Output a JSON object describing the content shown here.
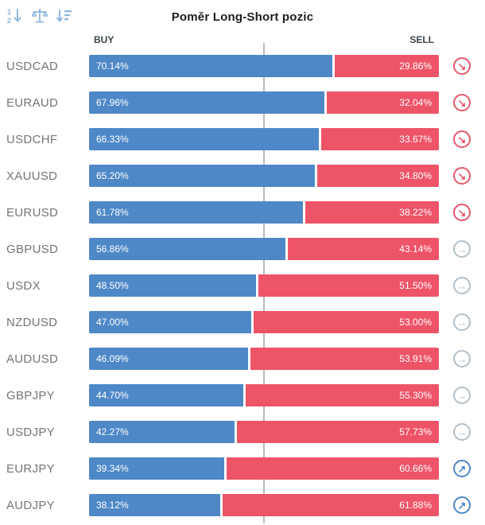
{
  "header": {
    "title": "Poměr Long-Short pozic",
    "buy_label": "BUY",
    "sell_label": "SELL"
  },
  "colors": {
    "buy": "#4e88c7",
    "sell": "#ee5468",
    "trend_down": "#e4596b",
    "trend_flat": "#b3bfc7",
    "trend_up": "#4e88c7",
    "toolbar_icon": "#8fb6dc",
    "center_line": "#b9b9b9"
  },
  "icons": {
    "toolbar": [
      "sort-numeric-icon",
      "balance-icon",
      "sort-amount-icon"
    ],
    "trend_glyphs": {
      "down": "↘",
      "flat": "→",
      "up": "↗"
    }
  },
  "rows": [
    {
      "pair": "USDCAD",
      "buy": "70.14%",
      "sell": "29.86%",
      "buy_value": 70.14,
      "sell_value": 29.86,
      "trend": "down"
    },
    {
      "pair": "EURAUD",
      "buy": "67.96%",
      "sell": "32.04%",
      "buy_value": 67.96,
      "sell_value": 32.04,
      "trend": "down"
    },
    {
      "pair": "USDCHF",
      "buy": "66.33%",
      "sell": "33.67%",
      "buy_value": 66.33,
      "sell_value": 33.67,
      "trend": "down"
    },
    {
      "pair": "XAUUSD",
      "buy": "65.20%",
      "sell": "34.80%",
      "buy_value": 65.2,
      "sell_value": 34.8,
      "trend": "down"
    },
    {
      "pair": "EURUSD",
      "buy": "61.78%",
      "sell": "38.22%",
      "buy_value": 61.78,
      "sell_value": 38.22,
      "trend": "down"
    },
    {
      "pair": "GBPUSD",
      "buy": "56.86%",
      "sell": "43.14%",
      "buy_value": 56.86,
      "sell_value": 43.14,
      "trend": "flat"
    },
    {
      "pair": "USDX",
      "buy": "48.50%",
      "sell": "51.50%",
      "buy_value": 48.5,
      "sell_value": 51.5,
      "trend": "flat"
    },
    {
      "pair": "NZDUSD",
      "buy": "47.00%",
      "sell": "53.00%",
      "buy_value": 47.0,
      "sell_value": 53.0,
      "trend": "flat"
    },
    {
      "pair": "AUDUSD",
      "buy": "46.09%",
      "sell": "53.91%",
      "buy_value": 46.09,
      "sell_value": 53.91,
      "trend": "flat"
    },
    {
      "pair": "GBPJPY",
      "buy": "44.70%",
      "sell": "55.30%",
      "buy_value": 44.7,
      "sell_value": 55.3,
      "trend": "flat"
    },
    {
      "pair": "USDJPY",
      "buy": "42.27%",
      "sell": "57.73%",
      "buy_value": 42.27,
      "sell_value": 57.73,
      "trend": "flat"
    },
    {
      "pair": "EURJPY",
      "buy": "39.34%",
      "sell": "60.66%",
      "buy_value": 39.34,
      "sell_value": 60.66,
      "trend": "up"
    },
    {
      "pair": "AUDJPY",
      "buy": "38.12%",
      "sell": "61.88%",
      "buy_value": 38.12,
      "sell_value": 61.88,
      "trend": "up"
    }
  ],
  "chart_data": {
    "type": "bar",
    "orientation": "horizontal-stacked",
    "title": "Poměr Long-Short pozic",
    "categories": [
      "USDCAD",
      "EURAUD",
      "USDCHF",
      "XAUUSD",
      "EURUSD",
      "GBPUSD",
      "USDX",
      "NZDUSD",
      "AUDUSD",
      "GBPJPY",
      "USDJPY",
      "EURJPY",
      "AUDJPY"
    ],
    "series": [
      {
        "name": "BUY",
        "color": "#4e88c7",
        "values": [
          70.14,
          67.96,
          66.33,
          65.2,
          61.78,
          56.86,
          48.5,
          47.0,
          46.09,
          44.7,
          42.27,
          39.34,
          38.12
        ]
      },
      {
        "name": "SELL",
        "color": "#ee5468",
        "values": [
          29.86,
          32.04,
          33.67,
          34.8,
          38.22,
          43.14,
          51.5,
          53.0,
          53.91,
          55.3,
          57.73,
          60.66,
          61.88
        ]
      }
    ],
    "xlim": [
      0,
      100
    ],
    "midline": 50,
    "legend_position": "top (BUY left, SELL right)",
    "grid": false
  }
}
